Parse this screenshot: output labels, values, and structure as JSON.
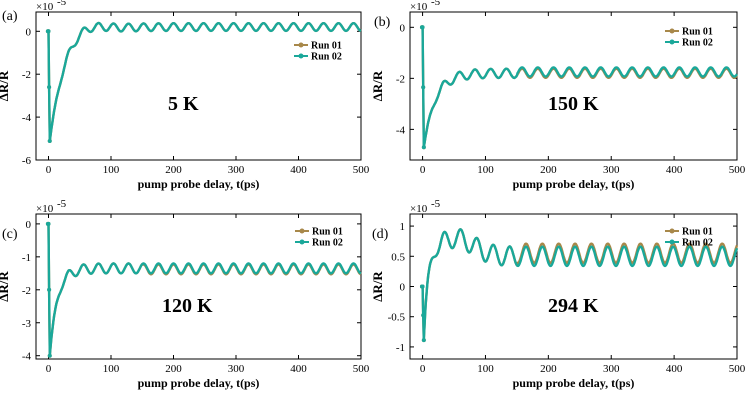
{
  "colors": {
    "run01": "#A8884A",
    "run02": "#1AA89A",
    "axis": "#000000"
  },
  "chart_data": [
    {
      "type": "line",
      "panel_label": "(a)",
      "temperature_label": "5 K",
      "xlabel": "pump probe delay, t(ps)",
      "ylabel": "ΔR/R",
      "y_exponent": "×10",
      "y_exponent_power": "-5",
      "xlim": [
        -20,
        500
      ],
      "ylim": [
        -6,
        0.9
      ],
      "xticks": [
        "0",
        "100",
        "200",
        "300",
        "400",
        "500"
      ],
      "yticks": [
        "-6",
        "-4",
        "-2",
        "0"
      ],
      "legend": [
        "Run 01",
        "Run 02"
      ],
      "legend_position": "right",
      "baseline": 0.2,
      "dip": -5.2,
      "rise_time": 25,
      "overshoot": 0.4,
      "osc_amp": 0.18,
      "osc_period": 24,
      "series": [
        {
          "name": "Run 01",
          "offset": 0.0
        },
        {
          "name": "Run 02",
          "offset": 0.0
        }
      ]
    },
    {
      "type": "line",
      "panel_label": "(b)",
      "temperature_label": "150 K",
      "xlabel": "pump probe delay, t(ps)",
      "ylabel": "ΔR/R",
      "y_exponent": "×10",
      "y_exponent_power": "-5",
      "xlim": [
        -20,
        500
      ],
      "ylim": [
        -5.2,
        0.6
      ],
      "xticks": [
        "0",
        "100",
        "200",
        "300",
        "400",
        "500"
      ],
      "yticks": [
        "-4",
        "-2",
        "0"
      ],
      "legend": [
        "Run 01",
        "Run 02"
      ],
      "legend_position": "top-right",
      "baseline": -1.8,
      "dip": -4.7,
      "rise_time": 18,
      "overshoot": 0.0,
      "osc_amp": 0.18,
      "osc_period": 25,
      "series": [
        {
          "name": "Run 01",
          "offset": 0.0
        },
        {
          "name": "Run 02",
          "offset": 0.05
        }
      ]
    },
    {
      "type": "line",
      "panel_label": "(c)",
      "temperature_label": "120 K",
      "xlabel": "pump probe delay, t(ps)",
      "ylabel": "ΔR/R",
      "y_exponent": "×10",
      "y_exponent_power": "-5",
      "xlim": [
        -20,
        500
      ],
      "ylim": [
        -4.1,
        0.3
      ],
      "xticks": [
        "0",
        "100",
        "200",
        "300",
        "400",
        "500"
      ],
      "yticks": [
        "-4",
        "-3",
        "-2",
        "-1",
        "0"
      ],
      "legend": [
        "Run 01",
        "Run 02"
      ],
      "legend_position": "top-right",
      "baseline": -1.35,
      "dip": -4.0,
      "rise_time": 12,
      "overshoot": 0.0,
      "osc_amp": 0.15,
      "osc_period": 24,
      "series": [
        {
          "name": "Run 01",
          "offset": -0.03
        },
        {
          "name": "Run 02",
          "offset": 0.0
        }
      ]
    },
    {
      "type": "line",
      "panel_label": "(d)",
      "temperature_label": "294 K",
      "xlabel": "pump probe delay, t(ps)",
      "ylabel": "ΔR/R",
      "y_exponent": "×10",
      "y_exponent_power": "-5",
      "xlim": [
        -20,
        500
      ],
      "ylim": [
        -1.2,
        1.2
      ],
      "xticks": [
        "0",
        "100",
        "200",
        "300",
        "400",
        "500"
      ],
      "yticks": [
        "-1",
        "-0.5",
        "0",
        "0.5",
        "1"
      ],
      "legend": [
        "Run 01",
        "Run 02"
      ],
      "legend_position": "top-right",
      "baseline": 0.5,
      "dip": -0.95,
      "rise_time": 6,
      "overshoot": 0.3,
      "osc_amp": 0.16,
      "osc_period": 26,
      "series": [
        {
          "name": "Run 01",
          "offset": 0.05
        },
        {
          "name": "Run 02",
          "offset": 0.0
        }
      ]
    }
  ]
}
